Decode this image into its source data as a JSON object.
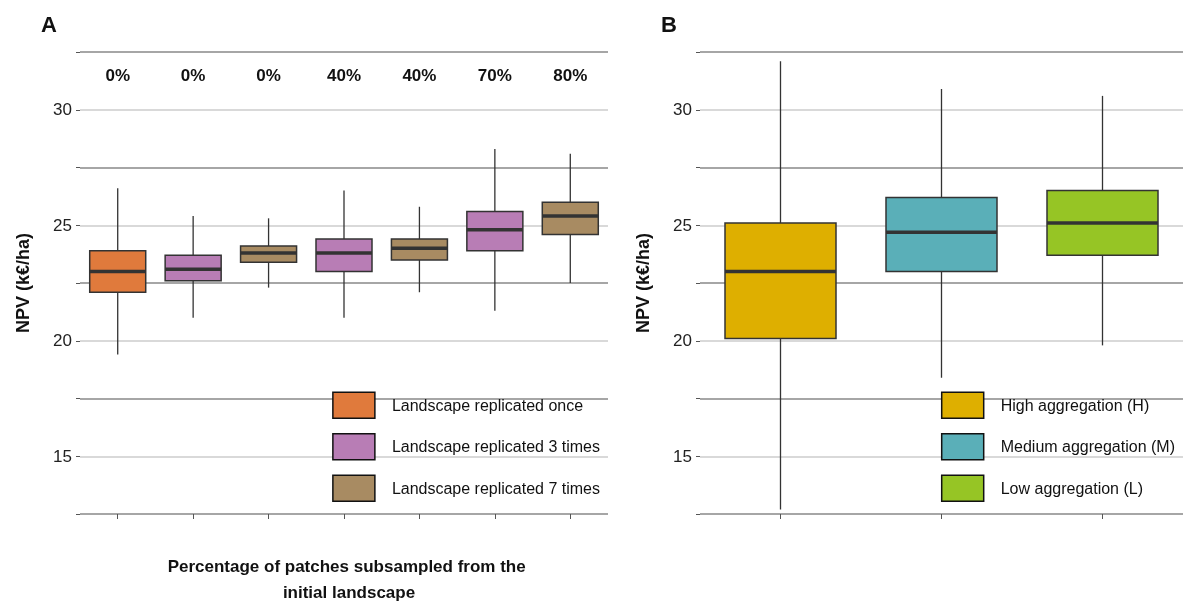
{
  "chart_data": [
    {
      "type": "box",
      "title": "A",
      "xlabel": "Percentage of patches subsampled from the initial landscape",
      "ylabel": "NPV (k€/ha)",
      "categories": [
        "0%",
        "0%",
        "0%",
        "40%",
        "40%",
        "70%",
        "80%"
      ],
      "series": [
        {
          "name": "Landscape replicated once",
          "color": "#e07a3c",
          "boxes": [
            {
              "low": 19.4,
              "q1": 22.1,
              "median": 23.0,
              "q3": 23.9,
              "high": 26.6
            },
            null,
            null,
            null,
            null,
            null,
            null
          ]
        },
        {
          "name": "Landscape replicated 3 times",
          "color": "#b87db5",
          "boxes": [
            null,
            {
              "low": 21.0,
              "q1": 22.6,
              "median": 23.1,
              "q3": 23.7,
              "high": 25.4
            },
            null,
            {
              "low": 21.0,
              "q1": 23.0,
              "median": 23.8,
              "q3": 24.4,
              "high": 26.5
            },
            null,
            {
              "low": 21.3,
              "q1": 23.9,
              "median": 24.8,
              "q3": 25.6,
              "high": 28.3
            },
            null
          ]
        },
        {
          "name": "Landscape replicated 7 times",
          "color": "#a88b62",
          "boxes": [
            null,
            null,
            {
              "low": 22.3,
              "q1": 23.4,
              "median": 23.8,
              "q3": 24.1,
              "high": 25.3
            },
            null,
            {
              "low": 22.1,
              "q1": 23.5,
              "median": 24.0,
              "q3": 24.4,
              "high": 25.8
            },
            null,
            {
              "low": 22.5,
              "q1": 24.6,
              "median": 25.4,
              "q3": 26.0,
              "high": 28.1
            }
          ]
        }
      ],
      "ylim": [
        12.5,
        32.5
      ],
      "yticks": [
        {
          "value": 12.5,
          "label": null
        },
        15,
        {
          "value": 17.5,
          "label": null
        },
        20,
        {
          "value": 22.5,
          "label": null
        },
        25,
        {
          "value": 27.5,
          "label": null
        },
        30,
        {
          "value": 32.5,
          "label": null
        }
      ],
      "grid": "y",
      "legend": "bottom right"
    },
    {
      "type": "box",
      "title": "B",
      "ylabel": "NPV (k€/ha)",
      "categories": [
        null,
        null,
        null
      ],
      "series": [
        {
          "name": "High aggregation (H)",
          "color": "#deaf00",
          "boxes": [
            {
              "low": 12.7,
              "q1": 20.1,
              "median": 23.0,
              "q3": 25.1,
              "high": 32.1
            },
            null,
            null
          ]
        },
        {
          "name": "Medium aggregation (M)",
          "color": "#5aafb8",
          "boxes": [
            null,
            {
              "low": 18.4,
              "q1": 23.0,
              "median": 24.7,
              "q3": 26.2,
              "high": 30.9
            },
            null
          ]
        },
        {
          "name": "Low aggregation (L)",
          "color": "#96c525",
          "boxes": [
            null,
            null,
            {
              "low": 19.8,
              "q1": 23.7,
              "median": 25.1,
              "q3": 26.5,
              "high": 30.6
            }
          ]
        }
      ],
      "ylim": [
        12.5,
        32.5
      ],
      "yticks": [
        {
          "value": 12.5,
          "label": null
        },
        15,
        {
          "value": 17.5,
          "label": null
        },
        20,
        {
          "value": 22.5,
          "label": null
        },
        25,
        {
          "value": 27.5,
          "label": null
        },
        30,
        {
          "value": 32.5,
          "label": null
        }
      ],
      "grid": "y",
      "legend": "bottom right"
    }
  ]
}
